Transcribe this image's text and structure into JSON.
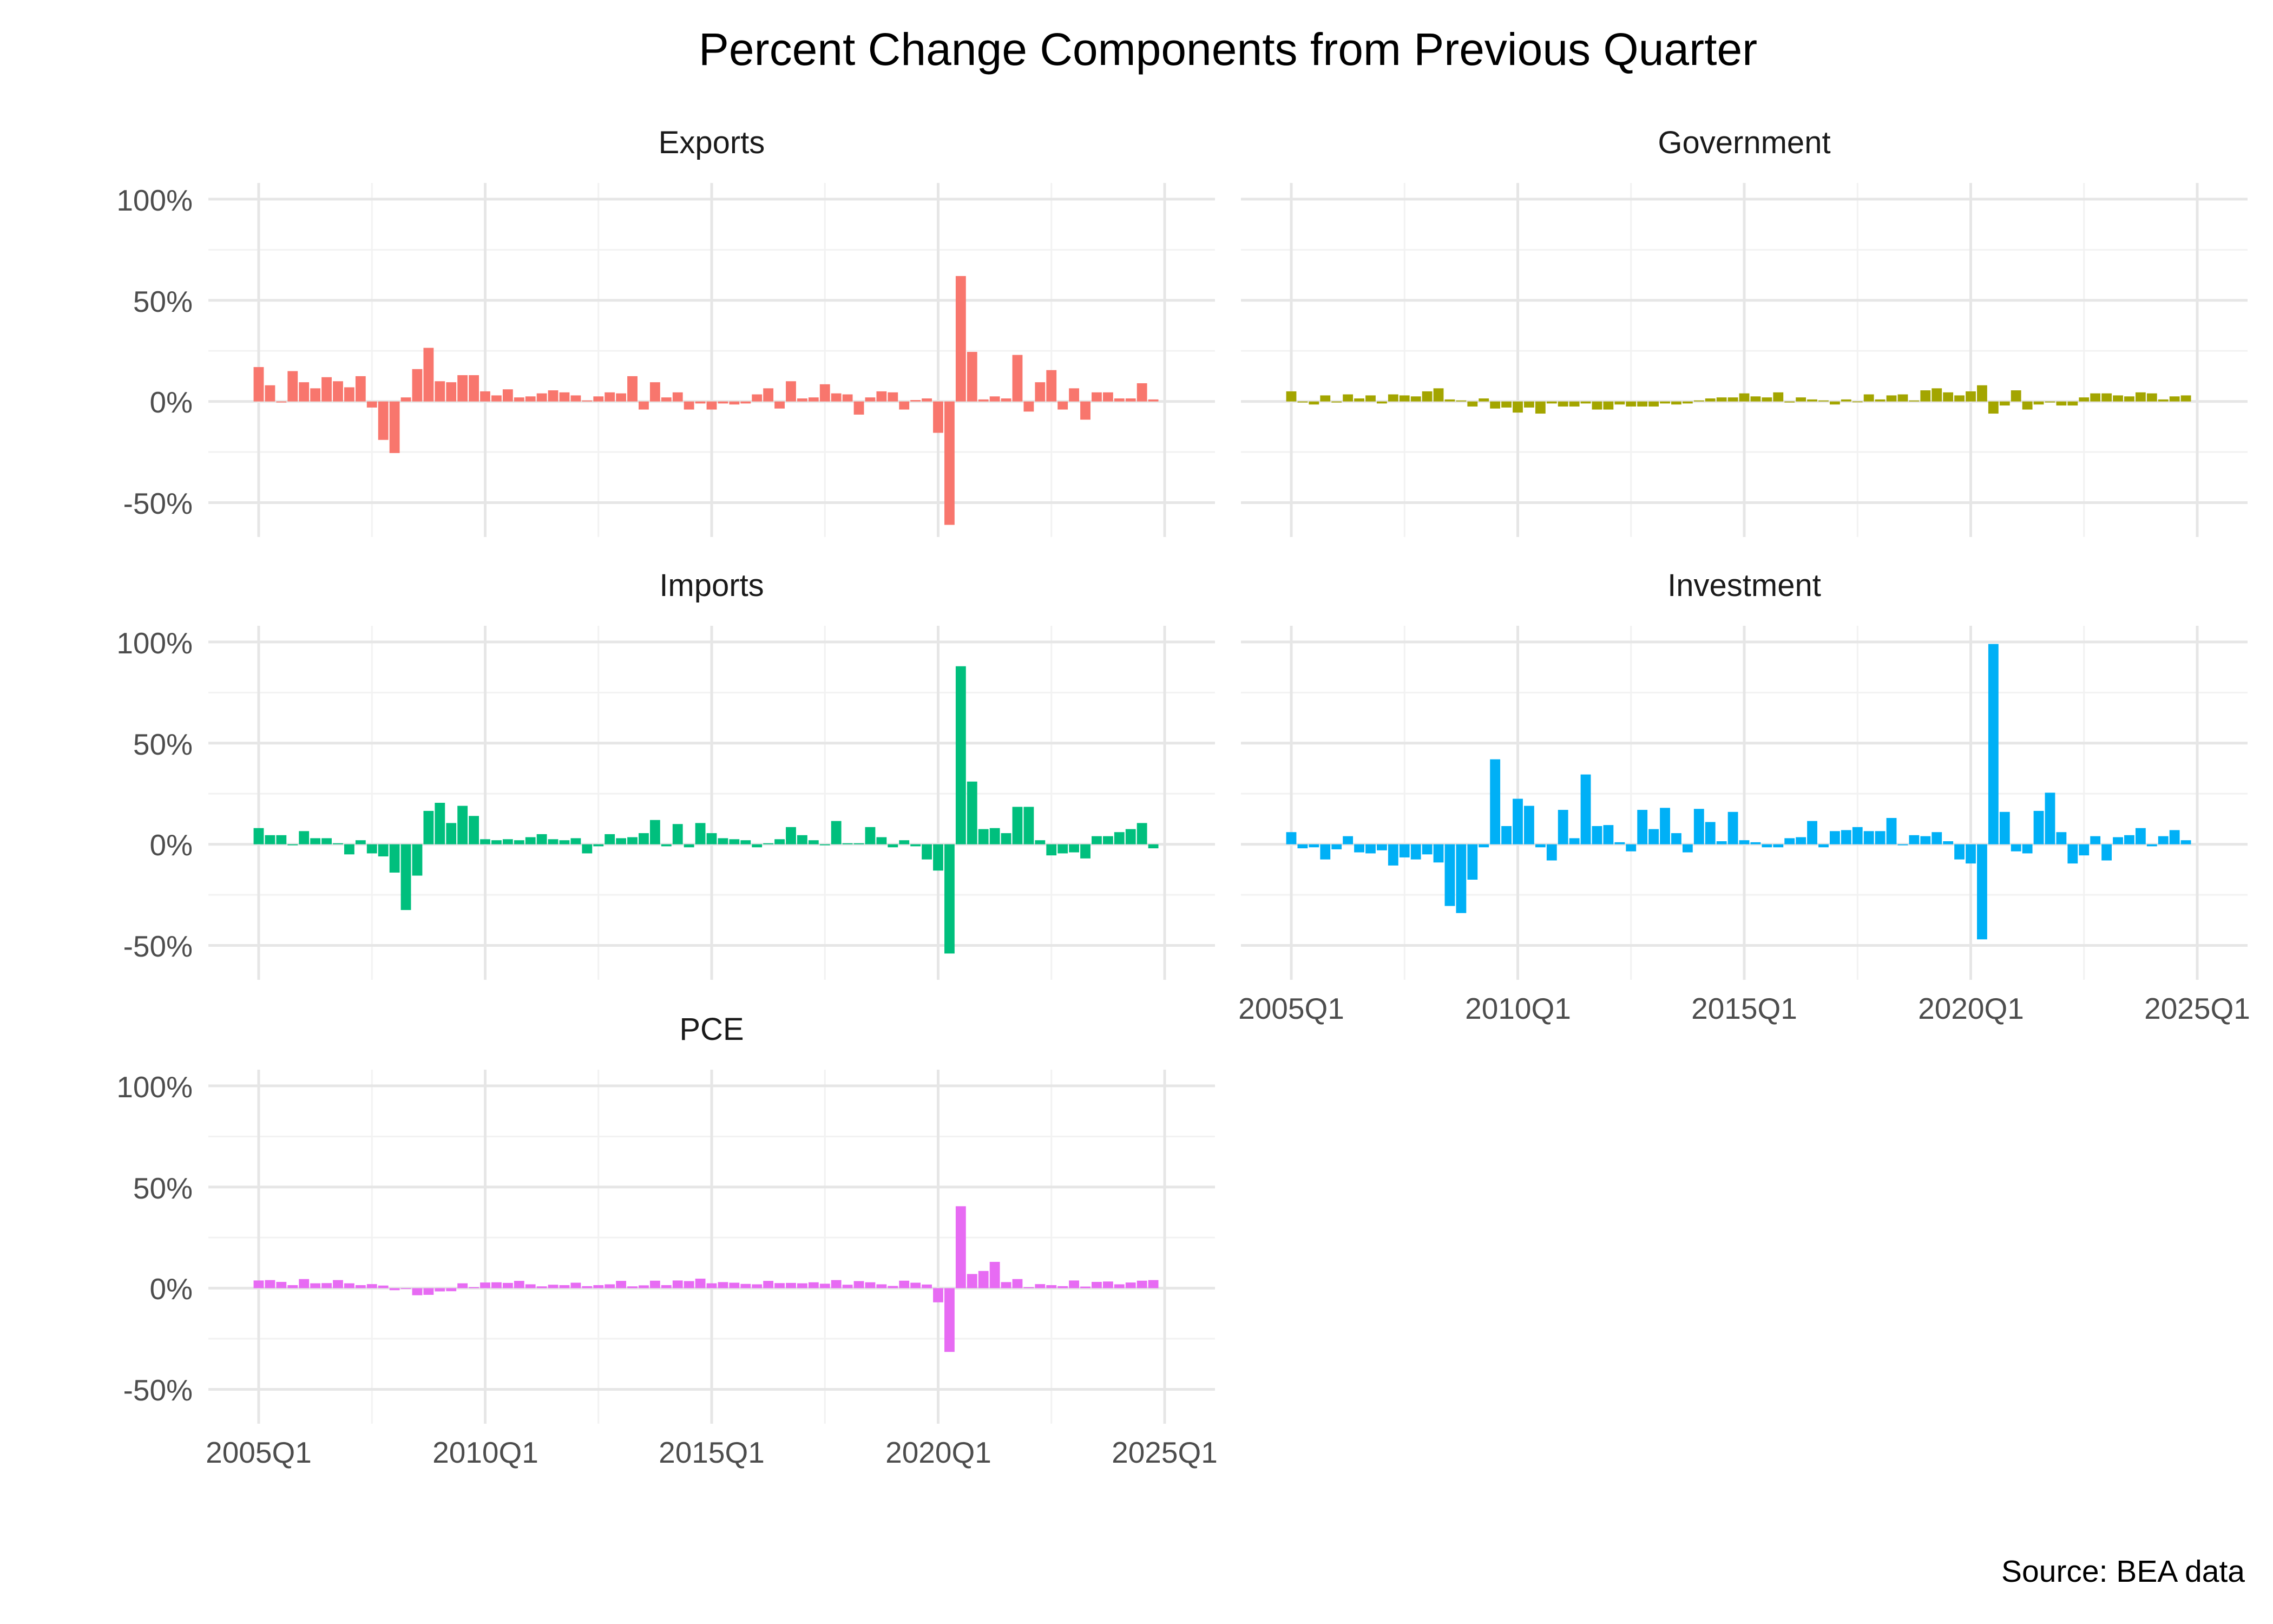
{
  "title": "Percent Change Components from Previous Quarter",
  "source": "Source: BEA data",
  "y_axis": {
    "tick_labels": [
      "100%",
      "50%",
      "0%",
      "-50%"
    ],
    "tick_values": [
      100,
      50,
      0,
      -50
    ]
  },
  "x_axis": {
    "tick_labels": [
      "2005Q1",
      "2010Q1",
      "2015Q1",
      "2020Q1",
      "2025Q1"
    ]
  },
  "chart_data": {
    "type": "bar",
    "title": "Percent Change Components from Previous Quarter",
    "xlabel": "",
    "ylabel": "",
    "ylim": [
      -67,
      108
    ],
    "x_range": [
      "2005Q1",
      "2025Q1"
    ],
    "grid": true,
    "legend": false,
    "facet_layout": [
      "Exports",
      "Government",
      "Imports",
      "Investment",
      "PCE"
    ],
    "quarters": [
      "2005Q1",
      "2005Q2",
      "2005Q3",
      "2005Q4",
      "2006Q1",
      "2006Q2",
      "2006Q3",
      "2006Q4",
      "2007Q1",
      "2007Q2",
      "2007Q3",
      "2007Q4",
      "2008Q1",
      "2008Q2",
      "2008Q3",
      "2008Q4",
      "2009Q1",
      "2009Q2",
      "2009Q3",
      "2009Q4",
      "2010Q1",
      "2010Q2",
      "2010Q3",
      "2010Q4",
      "2011Q1",
      "2011Q2",
      "2011Q3",
      "2011Q4",
      "2012Q1",
      "2012Q2",
      "2012Q3",
      "2012Q4",
      "2013Q1",
      "2013Q2",
      "2013Q3",
      "2013Q4",
      "2014Q1",
      "2014Q2",
      "2014Q3",
      "2014Q4",
      "2015Q1",
      "2015Q2",
      "2015Q3",
      "2015Q4",
      "2016Q1",
      "2016Q2",
      "2016Q3",
      "2016Q4",
      "2017Q1",
      "2017Q2",
      "2017Q3",
      "2017Q4",
      "2018Q1",
      "2018Q2",
      "2018Q3",
      "2018Q4",
      "2019Q1",
      "2019Q2",
      "2019Q3",
      "2019Q4",
      "2020Q1",
      "2020Q2",
      "2020Q3",
      "2020Q4",
      "2021Q1",
      "2021Q2",
      "2021Q3",
      "2021Q4",
      "2022Q1",
      "2022Q2",
      "2022Q3",
      "2022Q4",
      "2023Q1",
      "2023Q2",
      "2023Q3",
      "2023Q4",
      "2024Q1",
      "2024Q2",
      "2024Q3",
      "2024Q4"
    ],
    "facets": [
      {
        "name": "Exports",
        "color": "#F8766D",
        "values": [
          17,
          8,
          -0.5,
          15,
          9.5,
          6.5,
          12,
          10,
          7,
          12.5,
          -3,
          -19,
          -25.5,
          2,
          16,
          26.5,
          10,
          9.5,
          13,
          13,
          5,
          3,
          6,
          2,
          2.5,
          4,
          5.5,
          4.5,
          3,
          0.5,
          2.5,
          4.5,
          4,
          12.5,
          -4,
          9.5,
          2,
          4.5,
          -4,
          -1,
          -4,
          -1,
          -1.5,
          -1,
          3.5,
          6.5,
          -3.5,
          10,
          1.5,
          2,
          8.5,
          4,
          3.5,
          -6.5,
          2,
          5,
          4.5,
          -4,
          0.7,
          1.5,
          -15.5,
          -61,
          62,
          24.5,
          1,
          2.5,
          1.5,
          23,
          -5,
          9.5,
          15.5,
          -4,
          6.5,
          -9,
          4.5,
          4.5,
          1.5,
          1.5,
          9,
          1
        ]
      },
      {
        "name": "Government",
        "color": "#A3A500",
        "values": [
          5,
          -0.5,
          -1.5,
          3,
          -0.5,
          3.5,
          1.5,
          3,
          -1,
          3.5,
          3,
          2.5,
          5,
          6.5,
          1,
          0.5,
          -2.5,
          1.5,
          -3.5,
          -3,
          -5.5,
          -3,
          -6,
          -1,
          -2.5,
          -2.5,
          -1,
          -4,
          -4,
          -1.5,
          -2.5,
          -2.5,
          -2.5,
          -1,
          -1.5,
          -1,
          0.5,
          1.5,
          2,
          2,
          4,
          2.5,
          2,
          4.5,
          -0.5,
          2,
          1,
          0.5,
          -1.5,
          1,
          -0.3,
          3.5,
          1,
          3,
          3.5,
          0.5,
          5.5,
          6.5,
          4.5,
          3,
          5,
          8,
          -6,
          -2,
          5.5,
          -4,
          -1.5,
          -0.5,
          -2,
          -2,
          2,
          4,
          4,
          3,
          2.5,
          4.5,
          4,
          1,
          2.5,
          3
        ]
      },
      {
        "name": "Imports",
        "color": "#00BF7D",
        "values": [
          8,
          4.5,
          4.5,
          -0.5,
          6.5,
          3,
          3,
          0.5,
          -5,
          2,
          -4.5,
          -6,
          -14,
          -32.5,
          -15.5,
          16.5,
          20.5,
          10.5,
          19,
          14,
          2.5,
          2,
          2.5,
          2,
          3.5,
          5,
          2.5,
          2,
          3,
          -4.5,
          -1,
          5,
          3,
          3.5,
          5.5,
          12,
          -1,
          10,
          -1.5,
          10.5,
          5.5,
          3,
          2.5,
          2,
          -1.5,
          0.5,
          2.5,
          8.5,
          4.5,
          2,
          -0.5,
          11.5,
          0.5,
          0.5,
          8.5,
          3.5,
          -1.5,
          2,
          -1,
          -7.5,
          -13,
          -54,
          88,
          31,
          7.5,
          8,
          5.5,
          18.5,
          18.5,
          2,
          -5.5,
          -4.5,
          -4,
          -7,
          4,
          4,
          6,
          7.5,
          10.5,
          -2
        ]
      },
      {
        "name": "Investment",
        "color": "#00B0F6",
        "values": [
          6,
          -2,
          -1.5,
          -7.5,
          -2.5,
          4,
          -4,
          -4.5,
          -3,
          -10.5,
          -6.5,
          -7.5,
          -5,
          -9,
          -30.5,
          -34,
          -17.5,
          -1.5,
          42,
          9,
          22.5,
          19,
          -1.5,
          -8,
          17,
          3,
          34.5,
          9,
          9.5,
          1,
          -3.5,
          17,
          7.5,
          18,
          5.5,
          -4,
          17.5,
          11,
          1.5,
          16,
          2,
          1,
          -1.5,
          -1.5,
          3,
          3.5,
          11.5,
          -1.5,
          6.5,
          7,
          8.5,
          6.5,
          6.5,
          13,
          -0.5,
          4.5,
          4,
          6,
          1.5,
          -7.5,
          -9.5,
          -47,
          99,
          16,
          -3.5,
          -4.5,
          16.5,
          25.5,
          6,
          -9.5,
          -5.5,
          4,
          -8,
          3.5,
          4.5,
          8,
          -1,
          4,
          7,
          2
        ]
      },
      {
        "name": "PCE",
        "color": "#E76BF3",
        "values": [
          3.8,
          4,
          3.1,
          1.5,
          4.5,
          2.4,
          2.5,
          4,
          2.4,
          1.5,
          2,
          1.3,
          -1,
          0,
          -3.5,
          -3.3,
          -1.6,
          -1.5,
          2.4,
          0.5,
          2.8,
          2.9,
          2.6,
          3.6,
          1.9,
          0.9,
          1.7,
          1.5,
          2.7,
          1,
          1.5,
          1.9,
          3.6,
          0.9,
          1.4,
          3.7,
          1.5,
          3.8,
          3.5,
          4.7,
          2.4,
          3,
          2.7,
          2.1,
          1.9,
          3.6,
          2.5,
          2.6,
          2.4,
          2.9,
          2.2,
          4,
          1.7,
          3.5,
          2.9,
          1.9,
          1.1,
          3.7,
          2.7,
          1.8,
          -7,
          -31.5,
          40.5,
          7,
          8.5,
          13,
          3,
          4.5,
          0.5,
          2,
          1.5,
          1,
          3.8,
          0.8,
          3.1,
          3.3,
          1.9,
          2.8,
          3.7,
          4
        ]
      }
    ]
  }
}
